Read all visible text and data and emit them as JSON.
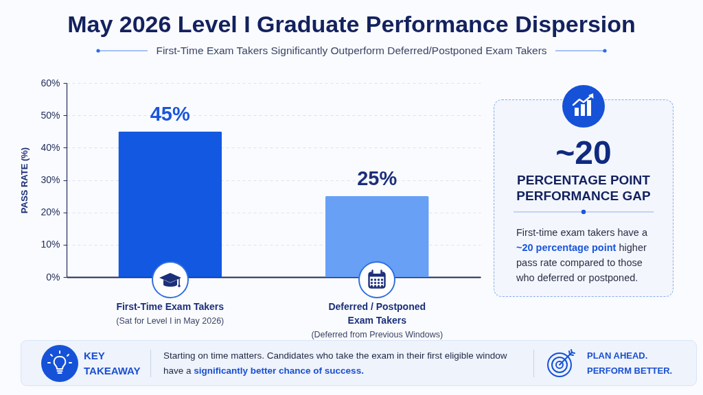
{
  "chart_data": [
    {
      "type": "bar",
      "title": "May 2026 Level I Graduate Performance Dispersion",
      "subtitle": "First-Time Exam Takers Significantly Outperform Deferred/Postponed Exam Takers",
      "categories": [
        "First-Time Exam Takers",
        "Deferred / Postponed Exam Takers"
      ],
      "values": [
        45,
        25
      ],
      "colors": [
        "#1258e0",
        "#67a0f5"
      ],
      "value_labels": [
        "45%",
        "25%"
      ],
      "ylabel": "PASS RATE (%)",
      "ylim": [
        0,
        60
      ],
      "yticks": [
        {
          "value": 0,
          "label": "0%"
        },
        {
          "value": 10,
          "label": "10%"
        },
        {
          "value": 20,
          "label": "20%"
        },
        {
          "value": 30,
          "label": "30%"
        },
        {
          "value": 40,
          "label": "40%"
        },
        {
          "value": 50,
          "label": "50%"
        },
        {
          "value": 60,
          "label": "60%"
        }
      ],
      "grid": "y",
      "annotations": [
        "(Sat for Level I in May 2026)",
        "(Deferred from Previous Windows)"
      ]
    },
    {
      "type": "other",
      "title": "~20",
      "subtitle": "PERCENTAGE POINT PERFORMANCE GAP",
      "annotations": [
        "First-time exam takers have a ~20 percentage point higher pass rate compared to those who deferred or postponed."
      ]
    },
    {
      "type": "other",
      "title": "KEY TAKEAWAY",
      "annotations": [
        "Starting on time matters. Candidates who take the exam in their first eligible window have a significantly better chance of success.",
        "PLAN AHEAD. PERFORM BETTER."
      ]
    }
  ]
}
